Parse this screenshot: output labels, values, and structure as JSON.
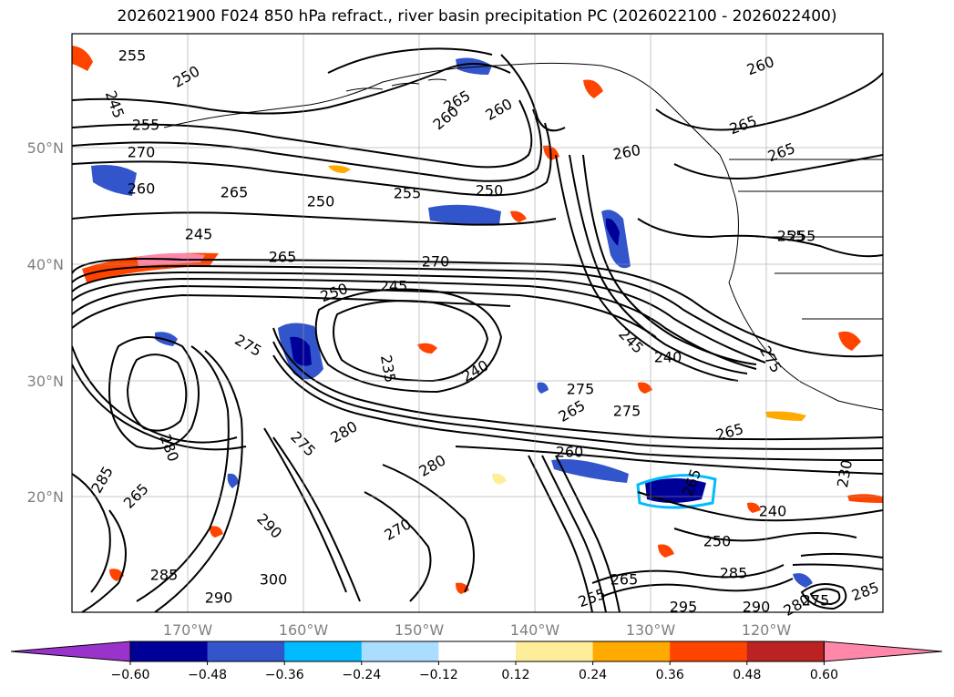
{
  "title": "2026021900 F024 850 hPa refract., river basin precipitation PC (2026022100 - 2026022400)",
  "lat_labels": [
    "50°N",
    "40°N",
    "30°N",
    "20°N"
  ],
  "lon_labels": [
    "170°W",
    "160°W",
    "150°W",
    "140°W",
    "130°W",
    "120°W"
  ],
  "colorbar": {
    "colors": [
      "#9933cc",
      "#000099",
      "#3355cc",
      "#00bbff",
      "#aaddff",
      "#ffffff",
      "#ffee99",
      "#ffaa00",
      "#ff4400",
      "#bb2222",
      "#ff88aa"
    ],
    "tick_labels": [
      "−0.60",
      "−0.48",
      "−0.36",
      "−0.24",
      "−0.12",
      "0.12",
      "0.24",
      "0.36",
      "0.48",
      "0.60"
    ]
  },
  "contour_labels": [
    {
      "text": "255"
    },
    {
      "text": "250"
    },
    {
      "text": "245"
    },
    {
      "text": "255"
    },
    {
      "text": "270"
    },
    {
      "text": "260"
    },
    {
      "text": "265"
    },
    {
      "text": "250"
    },
    {
      "text": "255"
    },
    {
      "text": "250"
    },
    {
      "text": "245"
    },
    {
      "text": "265"
    },
    {
      "text": "270"
    },
    {
      "text": "245"
    },
    {
      "text": "250"
    },
    {
      "text": "275"
    },
    {
      "text": "235"
    },
    {
      "text": "240"
    },
    {
      "text": "275"
    },
    {
      "text": "265"
    },
    {
      "text": "275"
    },
    {
      "text": "240"
    },
    {
      "text": "245"
    },
    {
      "text": "265"
    },
    {
      "text": "255"
    },
    {
      "text": "260"
    },
    {
      "text": "265"
    },
    {
      "text": "260"
    },
    {
      "text": "265"
    },
    {
      "text": "260"
    },
    {
      "text": "260"
    },
    {
      "text": "280"
    },
    {
      "text": "275"
    },
    {
      "text": "280"
    },
    {
      "text": "260"
    },
    {
      "text": "230"
    },
    {
      "text": "240"
    },
    {
      "text": "250"
    },
    {
      "text": "265"
    },
    {
      "text": "290"
    },
    {
      "text": "270"
    },
    {
      "text": "300"
    },
    {
      "text": "290"
    },
    {
      "text": "285"
    },
    {
      "text": "265"
    },
    {
      "text": "285"
    },
    {
      "text": "280"
    },
    {
      "text": "255"
    },
    {
      "text": "295"
    },
    {
      "text": "290"
    },
    {
      "text": "275"
    },
    {
      "text": "280"
    },
    {
      "text": "285"
    },
    {
      "text": "265"
    },
    {
      "text": "255"
    },
    {
      "text": "275"
    },
    {
      "text": "285"
    },
    {
      "text": "265"
    }
  ]
}
